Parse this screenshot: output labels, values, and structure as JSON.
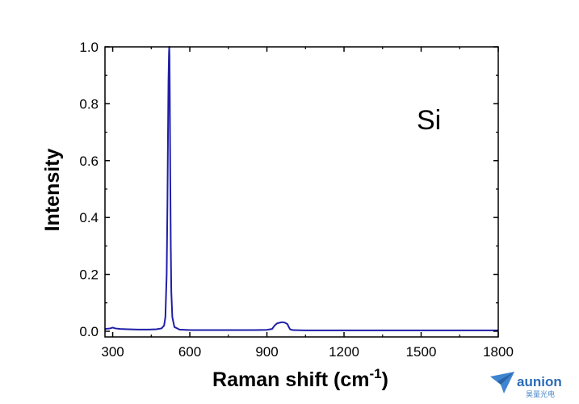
{
  "chart_data": {
    "type": "line",
    "title": "",
    "xlabel": "Raman shift (cm",
    "xlabel_sup": "-1",
    "xlabel_close": ")",
    "ylabel": "Intensity",
    "xlim": [
      270,
      1800
    ],
    "ylim": [
      -0.02,
      1.0
    ],
    "xticks": [
      300,
      600,
      900,
      1200,
      1500,
      1800
    ],
    "yticks": [
      0.0,
      0.2,
      0.4,
      0.6,
      0.8,
      1.0
    ],
    "xtick_labels": [
      "300",
      "600",
      "900",
      "1200",
      "1500",
      "1800"
    ],
    "ytick_labels": [
      "0.0",
      "0.2",
      "0.4",
      "0.6",
      "0.8",
      "1.0"
    ],
    "annotation": "Si",
    "grid": false,
    "series": [
      {
        "color": "#1f1fa8",
        "x": [
          270,
          290,
          300,
          310,
          330,
          360,
          400,
          440,
          470,
          490,
          500,
          505,
          510,
          513,
          515,
          517,
          519,
          520,
          521,
          522,
          524,
          526,
          528,
          532,
          540,
          560,
          600,
          650,
          700,
          750,
          800,
          850,
          900,
          920,
          930,
          940,
          950,
          960,
          970,
          980,
          985,
          990,
          1000,
          1050,
          1100,
          1200,
          1300,
          1400,
          1500,
          1600,
          1700,
          1800
        ],
        "y": [
          0.008,
          0.01,
          0.013,
          0.01,
          0.008,
          0.007,
          0.006,
          0.006,
          0.007,
          0.01,
          0.02,
          0.05,
          0.2,
          0.45,
          0.68,
          0.88,
          0.98,
          1.0,
          0.97,
          0.85,
          0.55,
          0.3,
          0.14,
          0.05,
          0.015,
          0.006,
          0.004,
          0.004,
          0.004,
          0.004,
          0.004,
          0.004,
          0.005,
          0.008,
          0.02,
          0.028,
          0.03,
          0.032,
          0.03,
          0.025,
          0.015,
          0.007,
          0.004,
          0.003,
          0.003,
          0.003,
          0.003,
          0.003,
          0.003,
          0.003,
          0.003,
          0.003
        ]
      }
    ]
  },
  "watermark": {
    "brand": "aunion",
    "sub": "昊量光电",
    "color": "#2b6cb8"
  }
}
